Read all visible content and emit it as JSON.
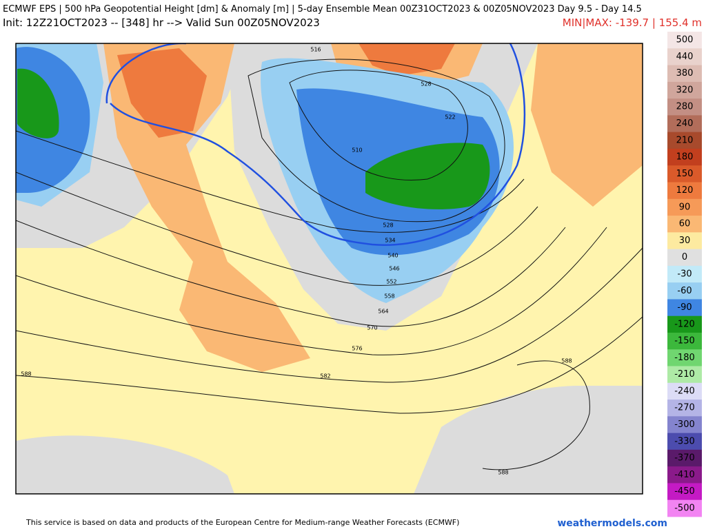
{
  "header": {
    "line1": "ECMWF EPS | 500 hPa Geopotential Height [dm] & Anomaly [m] | 5-day Ensemble Mean 00Z31OCT2023 & 00Z05NOV2023  Day 9.5 - Day 14.5",
    "init": "Init: 12Z21OCT2023 -- [348] hr --> Valid Sun 00Z05NOV2023",
    "minmax": "MIN|MAX: -139.7 | 155.4 m"
  },
  "colorbar": [
    {
      "label": "500",
      "color": "#f4e6e6"
    },
    {
      "label": "440",
      "color": "#e9d2cc"
    },
    {
      "label": "380",
      "color": "#ddbcb3"
    },
    {
      "label": "320",
      "color": "#d0a69c"
    },
    {
      "label": "280",
      "color": "#c38f84"
    },
    {
      "label": "240",
      "color": "#b26d5a"
    },
    {
      "label": "210",
      "color": "#a84a2c"
    },
    {
      "label": "180",
      "color": "#c23f1e"
    },
    {
      "label": "150",
      "color": "#da5a2a"
    },
    {
      "label": "120",
      "color": "#ee7a3e"
    },
    {
      "label": "90",
      "color": "#f69a58"
    },
    {
      "label": "60",
      "color": "#fab874"
    },
    {
      "label": "30",
      "color": "#fdeaa0"
    },
    {
      "label": "0",
      "color": "#e0e0e0"
    },
    {
      "label": "-30",
      "color": "#c2eaf8"
    },
    {
      "label": "-60",
      "color": "#98cff2"
    },
    {
      "label": "-90",
      "color": "#3f86e2"
    },
    {
      "label": "-120",
      "color": "#18981a"
    },
    {
      "label": "-150",
      "color": "#3cb83c"
    },
    {
      "label": "-180",
      "color": "#70d670"
    },
    {
      "label": "-210",
      "color": "#aeeaa6"
    },
    {
      "label": "-240",
      "color": "#dcdcf6"
    },
    {
      "label": "-270",
      "color": "#b4b4e6"
    },
    {
      "label": "-300",
      "color": "#8484ce"
    },
    {
      "label": "-330",
      "color": "#4c4cae"
    },
    {
      "label": "-370",
      "color": "#5a1a6a"
    },
    {
      "label": "-410",
      "color": "#8a1a8a"
    },
    {
      "label": "-450",
      "color": "#c41ac4"
    },
    {
      "label": "-500",
      "color": "#f284f2"
    }
  ],
  "map": {
    "contour_labels": [
      "516",
      "528",
      "522",
      "510",
      "528",
      "534",
      "540",
      "546",
      "552",
      "558",
      "564",
      "570",
      "576",
      "582",
      "588",
      "588",
      "588"
    ]
  },
  "footer": {
    "credit": "This service is based on data and products of the European Centre for Medium-range Weather Forecasts (ECMWF)",
    "site": "weathermodels.com"
  }
}
